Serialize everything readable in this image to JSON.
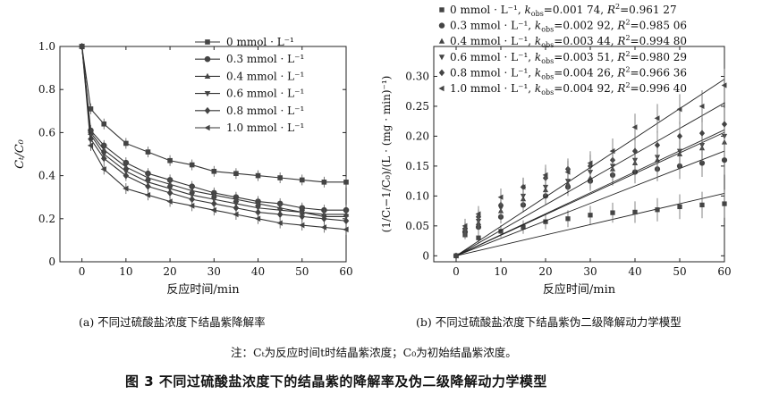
{
  "figure_title": "图 3   不同过硫酸盐浓度下的结晶紫的降解率及伪二级降解动力学模型",
  "note": "注：Cₜ为反应时间t时结晶紫浓度；C₀为初始结晶紫浓度。",
  "chart_data": [
    {
      "type": "line",
      "panel_caption": "(a) 不同过硫酸盐浓度下结晶紫降解率",
      "xlabel": "反应时间/min",
      "ylabel": "Cₜ/C₀",
      "xlim": [
        -5,
        60
      ],
      "ylim": [
        0,
        1.0
      ],
      "xticks": [
        "0",
        "10",
        "20",
        "30",
        "40",
        "50",
        "60"
      ],
      "yticks": [
        "0",
        "0.2",
        "0.4",
        "0.6",
        "0.8",
        "1.0"
      ],
      "legend_position": "top-right",
      "x": [
        0,
        2,
        5,
        10,
        15,
        20,
        25,
        30,
        35,
        40,
        45,
        50,
        55,
        60
      ],
      "series": [
        {
          "name": "0 mmol · L⁻¹",
          "marker": "square",
          "values": [
            1.0,
            0.71,
            0.64,
            0.55,
            0.51,
            0.47,
            0.45,
            0.42,
            0.41,
            0.4,
            0.39,
            0.38,
            0.37,
            0.37
          ]
        },
        {
          "name": "0.3 mmol · L⁻¹",
          "marker": "circle",
          "values": [
            1.0,
            0.61,
            0.54,
            0.46,
            0.41,
            0.38,
            0.35,
            0.32,
            0.3,
            0.28,
            0.27,
            0.25,
            0.24,
            0.24
          ]
        },
        {
          "name": "0.4 mmol · L⁻¹",
          "marker": "triangle-up",
          "values": [
            1.0,
            0.6,
            0.52,
            0.44,
            0.39,
            0.36,
            0.33,
            0.31,
            0.29,
            0.27,
            0.25,
            0.23,
            0.22,
            0.22
          ]
        },
        {
          "name": "0.6 mmol · L⁻¹",
          "marker": "triangle-down",
          "values": [
            1.0,
            0.59,
            0.5,
            0.42,
            0.37,
            0.34,
            0.31,
            0.29,
            0.27,
            0.25,
            0.24,
            0.23,
            0.21,
            0.21
          ]
        },
        {
          "name": "0.8 mmol · L⁻¹",
          "marker": "diamond",
          "values": [
            1.0,
            0.57,
            0.48,
            0.4,
            0.35,
            0.32,
            0.29,
            0.27,
            0.25,
            0.23,
            0.22,
            0.21,
            0.2,
            0.19
          ]
        },
        {
          "name": "1.0 mmol · L⁻¹",
          "marker": "triangle-left",
          "values": [
            1.0,
            0.54,
            0.43,
            0.34,
            0.31,
            0.28,
            0.26,
            0.24,
            0.22,
            0.2,
            0.18,
            0.17,
            0.16,
            0.15
          ]
        }
      ]
    },
    {
      "type": "scatter",
      "panel_caption": "(b) 不同过硫酸盐浓度下结晶紫伪二级降解动力学模型",
      "xlabel": "反应时间/min",
      "ylabel": "(1/Cₜ−1/C₀)/(L · (mg · min)⁻¹)",
      "xlim": [
        -5,
        60
      ],
      "ylim": [
        -0.01,
        0.35
      ],
      "xticks": [
        "0",
        "10",
        "20",
        "30",
        "40",
        "50",
        "60"
      ],
      "yticks": [
        "0",
        "0.05",
        "0.10",
        "0.15",
        "0.20",
        "0.25",
        "0.30"
      ],
      "legend_position": "top",
      "x": [
        0,
        2,
        5,
        10,
        15,
        20,
        25,
        30,
        35,
        40,
        45,
        50,
        55,
        60
      ],
      "series": [
        {
          "name": "0 mmol · L⁻¹",
          "marker": "square",
          "fit_text": "k_obs=0.001 74, R²=0.961 27",
          "k_label": "0.001 74",
          "r2_label": "0.961 27",
          "slope": 0.00174,
          "values": [
            0,
            0.035,
            0.03,
            0.041,
            0.048,
            0.057,
            0.062,
            0.068,
            0.072,
            0.073,
            0.077,
            0.082,
            0.085,
            0.087
          ]
        },
        {
          "name": "0.3 mmol · L⁻¹",
          "marker": "circle",
          "fit_text": "k_obs=0.002 92, R²=0.985 06",
          "k_label": "0.002 92",
          "r2_label": "0.985 06",
          "slope": 0.00292,
          "values": [
            0,
            0.04,
            0.048,
            0.065,
            0.085,
            0.1,
            0.115,
            0.125,
            0.135,
            0.14,
            0.145,
            0.15,
            0.155,
            0.16
          ]
        },
        {
          "name": "0.4 mmol · L⁻¹",
          "marker": "triangle-up",
          "fit_text": "k_obs=0.003 44, R²=0.994 80",
          "k_label": "0.003 44",
          "r2_label": "0.994 80",
          "slope": 0.00344,
          "values": [
            0,
            0.042,
            0.055,
            0.075,
            0.095,
            0.11,
            0.12,
            0.13,
            0.145,
            0.155,
            0.16,
            0.17,
            0.18,
            0.19
          ]
        },
        {
          "name": "0.6 mmol · L⁻¹",
          "marker": "triangle-down",
          "fit_text": "k_obs=0.003 51, R²=0.980 29",
          "k_label": "0.003 51",
          "r2_label": "0.980 29",
          "slope": 0.00351,
          "values": [
            0,
            0.043,
            0.058,
            0.08,
            0.1,
            0.115,
            0.125,
            0.14,
            0.15,
            0.16,
            0.165,
            0.175,
            0.185,
            0.2
          ]
        },
        {
          "name": "0.8 mmol · L⁻¹",
          "marker": "diamond",
          "fit_text": "k_obs=0.004 26, R²=0.966 36",
          "k_label": "0.004 26",
          "r2_label": "0.966 36",
          "slope": 0.00426,
          "values": [
            0,
            0.045,
            0.065,
            0.085,
            0.115,
            0.13,
            0.145,
            0.15,
            0.16,
            0.175,
            0.185,
            0.2,
            0.205,
            0.22
          ]
        },
        {
          "name": "1.0 mmol · L⁻¹",
          "marker": "triangle-left",
          "fit_text": "k_obs=0.004 92, R²=0.996 40",
          "k_label": "0.004 92",
          "r2_label": "0.996 40",
          "slope": 0.00492,
          "values": [
            0,
            0.05,
            0.07,
            0.098,
            0.115,
            0.135,
            0.14,
            0.155,
            0.175,
            0.215,
            0.23,
            0.245,
            0.25,
            0.285
          ]
        }
      ]
    }
  ]
}
